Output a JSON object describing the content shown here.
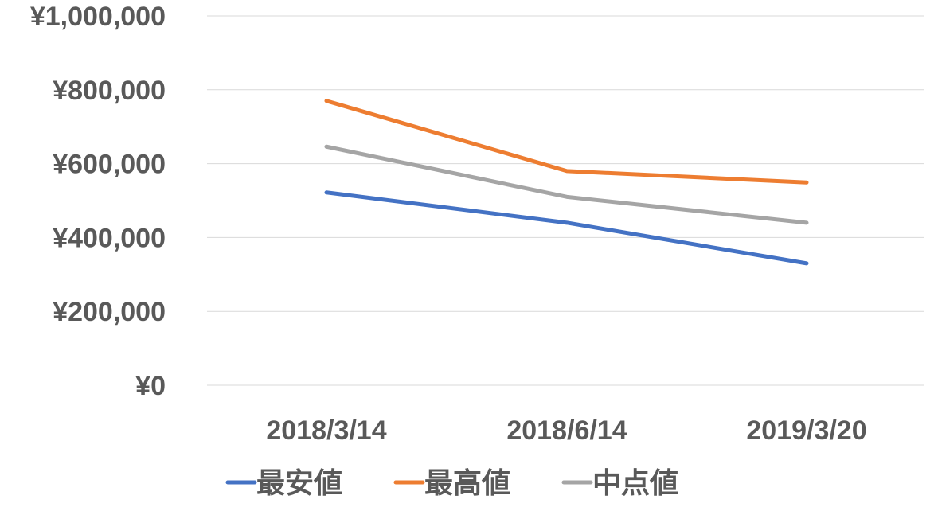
{
  "chart_data": {
    "type": "line",
    "categories": [
      "2018/3/14",
      "2018/6/14",
      "2019/3/20"
    ],
    "series": [
      {
        "name": "最安値",
        "color": "#4472C4",
        "values": [
          522000,
          440000,
          330000
        ]
      },
      {
        "name": "最高値",
        "color": "#ED7D31",
        "values": [
          770000,
          580000,
          549000
        ]
      },
      {
        "name": "中点値",
        "color": "#A5A5A5",
        "values": [
          646000,
          510000,
          440000
        ]
      }
    ],
    "y_ticks": [
      "¥0",
      "¥200,000",
      "¥400,000",
      "¥600,000",
      "¥800,000",
      "¥1,000,000"
    ],
    "ylim": [
      0,
      1000000
    ],
    "y_tick_values": [
      0,
      200000,
      400000,
      600000,
      800000,
      1000000
    ],
    "grid": true,
    "legend_position": "bottom"
  }
}
